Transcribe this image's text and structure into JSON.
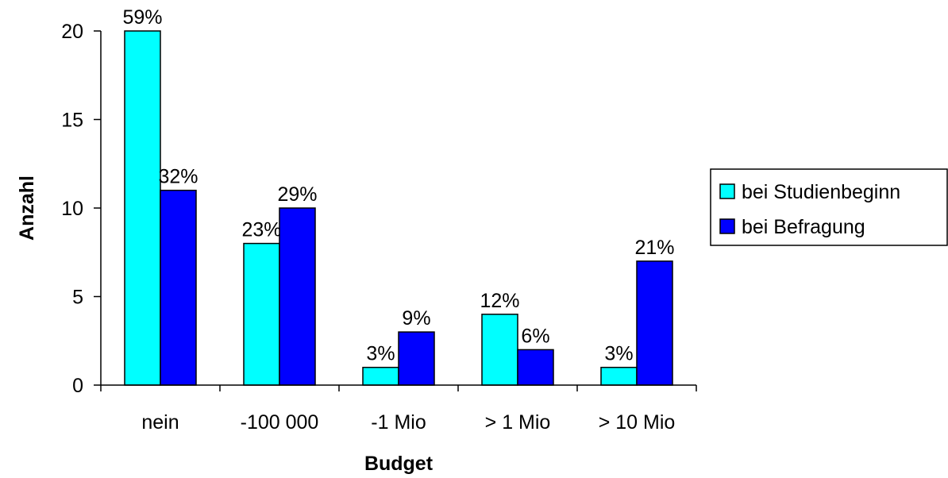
{
  "chart_data": {
    "type": "bar",
    "title": "",
    "xlabel": "Budget",
    "ylabel": "Anzahl",
    "categories": [
      "nein",
      "-100 000",
      "-1 Mio",
      "> 1 Mio",
      "> 10 Mio"
    ],
    "series": [
      {
        "name": "bei Studienbeginn",
        "color": "#00FFFF",
        "values": [
          20,
          8,
          1,
          4,
          1
        ],
        "labels": [
          "59%",
          "23%",
          "3%",
          "12%",
          "3%"
        ]
      },
      {
        "name": "bei Befragung",
        "color": "#0000FF",
        "values": [
          11,
          10,
          3,
          2,
          7
        ],
        "labels": [
          "32%",
          "29%",
          "9%",
          "6%",
          "21%"
        ]
      }
    ],
    "ylim": [
      0,
      20
    ],
    "yticks": [
      "0",
      "5",
      "10",
      "15",
      "20"
    ],
    "grid": false,
    "legend_position": "right"
  }
}
